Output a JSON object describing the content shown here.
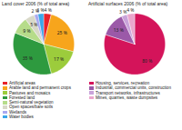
{
  "chart_data": [
    {
      "type": "pie",
      "title": "Land cover 2006 (% of total area)",
      "categories": [
        "Artificial areas",
        "Arable land and permanent crops",
        "Pastures and mosaics",
        "Forested land",
        "Semi-natural vegetation",
        "Open spaces/bare soils",
        "Wetlands",
        "Water bodies"
      ],
      "values": [
        4,
        25,
        17,
        35,
        9,
        5,
        2,
        3
      ],
      "value_labels": [
        "4 %",
        "25 %",
        "17 %",
        "35 %",
        "9 %",
        "5 %",
        "2 %",
        "3 %"
      ],
      "colors": [
        "#e8232a",
        "#f7a51c",
        "#9ccc3c",
        "#2e9a3f",
        "#b6dc8a",
        "#d8d8c8",
        "#a9a8f0",
        "#3aa6e8"
      ],
      "data_labels": true,
      "legend": "bottom"
    },
    {
      "type": "pie",
      "title": "Artificial surfaces 2006 (% of total area)",
      "categories": [
        "Housing, services, recreation",
        "Industrial, commercial units, construction",
        "Transport networks, infrastructures",
        "Mines, quarries, waste dumpsites"
      ],
      "values": [
        80,
        13,
        3,
        4
      ],
      "value_labels": [
        "80 %",
        "13 %",
        "3 %",
        "4 %"
      ],
      "colors": [
        "#d4145a",
        "#9b59a8",
        "#c9a3da",
        "#eaa6cc"
      ],
      "data_labels": true,
      "legend": "bottom"
    }
  ]
}
